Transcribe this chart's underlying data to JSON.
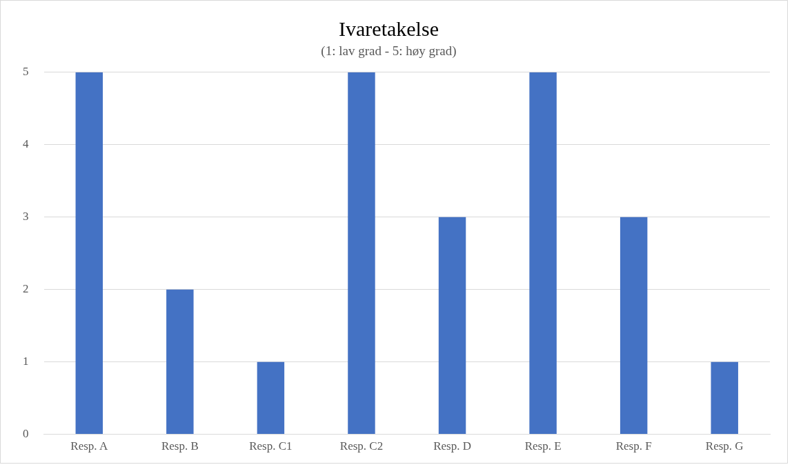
{
  "chart_data": {
    "type": "bar",
    "title": "Ivaretakelse",
    "subtitle": "(1: lav grad - 5: høy grad)",
    "categories": [
      "Resp. A",
      "Resp. B",
      "Resp. C1",
      "Resp. C2",
      "Resp. D",
      "Resp. E",
      "Resp. F",
      "Resp. G"
    ],
    "values": [
      5,
      2,
      1,
      5,
      3,
      5,
      3,
      1
    ],
    "color": "#4472c4",
    "ylim": [
      0,
      5
    ],
    "yticks": [
      0,
      1,
      2,
      3,
      4,
      5
    ],
    "grid": "y",
    "legend": false
  }
}
